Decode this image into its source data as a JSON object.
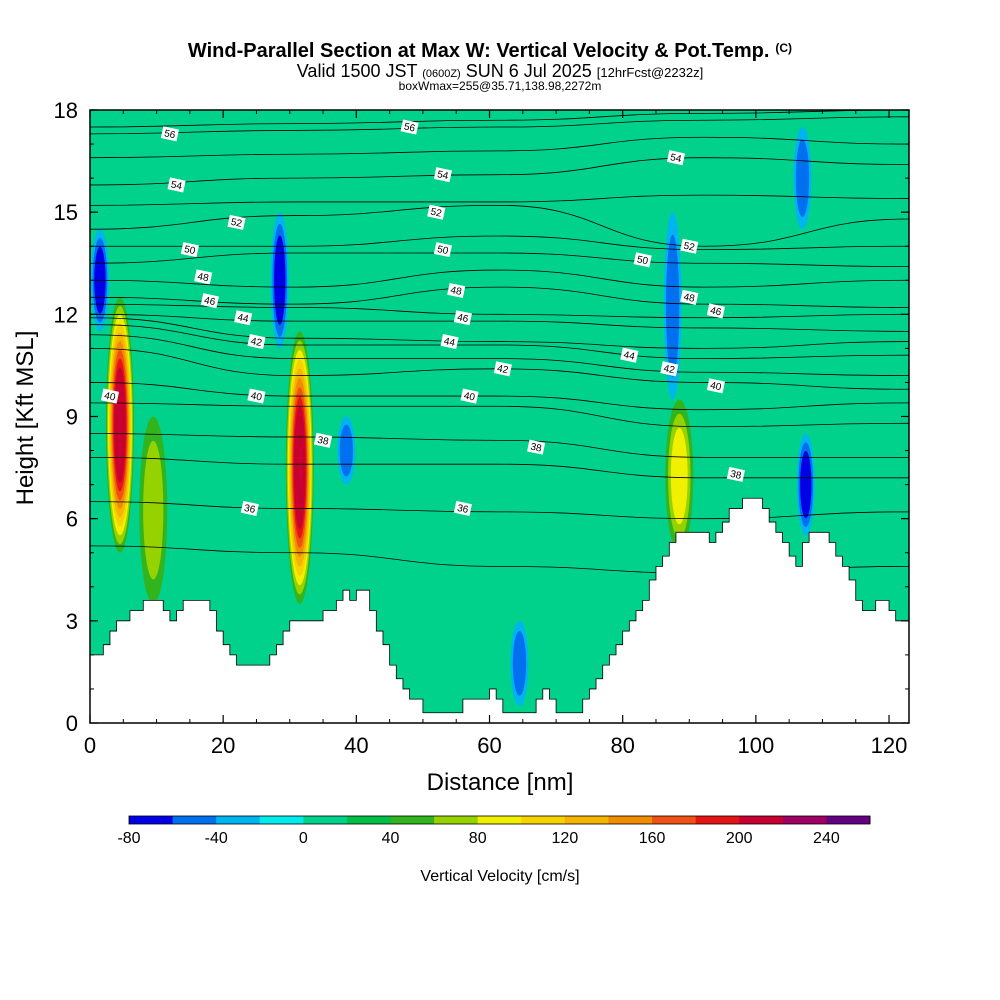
{
  "chart_data": {
    "type": "heatmap",
    "title": "Wind-Parallel Section at Max W: Vertical Velocity & Pot.Temp.",
    "title_mark": "(C)",
    "subtitle_parts": [
      "Valid 1500 JST ",
      "(0600Z)",
      " SUN 6 Jul 2025 ",
      "[12hrFcst@2232z]"
    ],
    "subtitle2": "boxWmax=255@35.71,138.98,2272m",
    "xlabel": "Distance [nm]",
    "ylabel": "Height [Kft MSL]",
    "xlim": [
      0,
      123
    ],
    "ylim": [
      0,
      18
    ],
    "x_ticks": [
      0,
      20,
      40,
      60,
      80,
      100,
      120
    ],
    "y_ticks": [
      0,
      3,
      6,
      9,
      12,
      15,
      18
    ],
    "colorbar": {
      "label": "Vertical Velocity [cm/s]",
      "tick_values": [
        -80,
        -40,
        0,
        40,
        80,
        120,
        160,
        200,
        240
      ],
      "levels": [
        -80,
        -60,
        -40,
        -20,
        0,
        20,
        40,
        60,
        80,
        100,
        120,
        140,
        160,
        180,
        200,
        220,
        240,
        260
      ],
      "colors": [
        "#0000e6",
        "#0070f0",
        "#00b4f0",
        "#00ecec",
        "#00d28c",
        "#00be46",
        "#32b41e",
        "#96d200",
        "#f0f000",
        "#f5d200",
        "#f5b400",
        "#f08c00",
        "#f05014",
        "#e61414",
        "#c80032",
        "#a00064",
        "#640082"
      ]
    },
    "background_color": "#00d28c",
    "terrain_color": "#ffffff",
    "terrain": [
      [
        0,
        2.0
      ],
      [
        2,
        2.0
      ],
      [
        2,
        2.3
      ],
      [
        3,
        2.3
      ],
      [
        3,
        2.7
      ],
      [
        4,
        2.7
      ],
      [
        4,
        3.0
      ],
      [
        6,
        3.0
      ],
      [
        6,
        3.3
      ],
      [
        8,
        3.3
      ],
      [
        8,
        3.6
      ],
      [
        11,
        3.6
      ],
      [
        11,
        3.3
      ],
      [
        12,
        3.3
      ],
      [
        12,
        3.0
      ],
      [
        13,
        3.0
      ],
      [
        13,
        3.3
      ],
      [
        14,
        3.3
      ],
      [
        14,
        3.6
      ],
      [
        18,
        3.6
      ],
      [
        18,
        3.3
      ],
      [
        19,
        3.3
      ],
      [
        19,
        2.7
      ],
      [
        20,
        2.7
      ],
      [
        20,
        2.3
      ],
      [
        21,
        2.3
      ],
      [
        21,
        2.0
      ],
      [
        22,
        2.0
      ],
      [
        22,
        1.7
      ],
      [
        27,
        1.7
      ],
      [
        27,
        2.0
      ],
      [
        28,
        2.0
      ],
      [
        28,
        2.3
      ],
      [
        29,
        2.3
      ],
      [
        29,
        2.7
      ],
      [
        30,
        2.7
      ],
      [
        30,
        3.0
      ],
      [
        35,
        3.0
      ],
      [
        35,
        3.3
      ],
      [
        37,
        3.3
      ],
      [
        37,
        3.6
      ],
      [
        38,
        3.6
      ],
      [
        38,
        3.9
      ],
      [
        39,
        3.9
      ],
      [
        39,
        3.6
      ],
      [
        40,
        3.6
      ],
      [
        40,
        3.9
      ],
      [
        42,
        3.9
      ],
      [
        42,
        3.3
      ],
      [
        43,
        3.3
      ],
      [
        43,
        2.7
      ],
      [
        44,
        2.7
      ],
      [
        44,
        2.3
      ],
      [
        45,
        2.3
      ],
      [
        45,
        1.7
      ],
      [
        46,
        1.7
      ],
      [
        46,
        1.3
      ],
      [
        47,
        1.3
      ],
      [
        47,
        1.0
      ],
      [
        48,
        1.0
      ],
      [
        48,
        0.7
      ],
      [
        50,
        0.7
      ],
      [
        50,
        0.3
      ],
      [
        56,
        0.3
      ],
      [
        56,
        0.7
      ],
      [
        60,
        0.7
      ],
      [
        60,
        1.0
      ],
      [
        61,
        1.0
      ],
      [
        61,
        0.7
      ],
      [
        62,
        0.7
      ],
      [
        62,
        0.3
      ],
      [
        67,
        0.3
      ],
      [
        67,
        0.7
      ],
      [
        68,
        0.7
      ],
      [
        68,
        1.0
      ],
      [
        69,
        1.0
      ],
      [
        69,
        0.7
      ],
      [
        70,
        0.7
      ],
      [
        70,
        0.3
      ],
      [
        74,
        0.3
      ],
      [
        74,
        0.7
      ],
      [
        75,
        0.7
      ],
      [
        75,
        1.0
      ],
      [
        76,
        1.0
      ],
      [
        76,
        1.3
      ],
      [
        77,
        1.3
      ],
      [
        77,
        1.7
      ],
      [
        78,
        1.7
      ],
      [
        78,
        2.0
      ],
      [
        79,
        2.0
      ],
      [
        79,
        2.3
      ],
      [
        80,
        2.3
      ],
      [
        80,
        2.7
      ],
      [
        81,
        2.7
      ],
      [
        81,
        3.0
      ],
      [
        82,
        3.0
      ],
      [
        82,
        3.3
      ],
      [
        83,
        3.3
      ],
      [
        83,
        3.6
      ],
      [
        84,
        3.6
      ],
      [
        84,
        4.2
      ],
      [
        85,
        4.2
      ],
      [
        85,
        4.6
      ],
      [
        86,
        4.6
      ],
      [
        86,
        4.9
      ],
      [
        87,
        4.9
      ],
      [
        87,
        5.3
      ],
      [
        88,
        5.3
      ],
      [
        88,
        5.6
      ],
      [
        93,
        5.6
      ],
      [
        93,
        5.3
      ],
      [
        94,
        5.3
      ],
      [
        94,
        5.6
      ],
      [
        95,
        5.6
      ],
      [
        95,
        5.9
      ],
      [
        96,
        5.9
      ],
      [
        96,
        6.3
      ],
      [
        98,
        6.3
      ],
      [
        98,
        6.6
      ],
      [
        101,
        6.6
      ],
      [
        101,
        6.3
      ],
      [
        102,
        6.3
      ],
      [
        102,
        5.9
      ],
      [
        103,
        5.9
      ],
      [
        103,
        5.6
      ],
      [
        104,
        5.6
      ],
      [
        104,
        5.3
      ],
      [
        105,
        5.3
      ],
      [
        105,
        4.9
      ],
      [
        106,
        4.9
      ],
      [
        106,
        4.6
      ],
      [
        107,
        4.6
      ],
      [
        107,
        5.3
      ],
      [
        108,
        5.3
      ],
      [
        108,
        5.6
      ],
      [
        111,
        5.6
      ],
      [
        111,
        5.3
      ],
      [
        112,
        5.3
      ],
      [
        112,
        4.9
      ],
      [
        113,
        4.9
      ],
      [
        113,
        4.6
      ],
      [
        114,
        4.6
      ],
      [
        114,
        4.2
      ],
      [
        115,
        4.2
      ],
      [
        115,
        3.6
      ],
      [
        116,
        3.6
      ],
      [
        116,
        3.3
      ],
      [
        118,
        3.3
      ],
      [
        118,
        3.6
      ],
      [
        120,
        3.6
      ],
      [
        120,
        3.3
      ],
      [
        121,
        3.3
      ],
      [
        121,
        3.0
      ],
      [
        123,
        3.0
      ]
    ],
    "updrafts": [
      {
        "x": 4.5,
        "y0": 5.0,
        "y1": 12.5,
        "peak": 200
      },
      {
        "x": 31.5,
        "y0": 3.5,
        "y1": 11.5,
        "peak": 215
      },
      {
        "x": 88.5,
        "y0": 5.0,
        "y1": 9.5,
        "peak": 90
      },
      {
        "x": 9.5,
        "y0": 3.5,
        "y1": 9.0,
        "peak": 60
      }
    ],
    "downdrafts": [
      {
        "x": 1.5,
        "y0": 11.5,
        "y1": 14.5,
        "peak": -60
      },
      {
        "x": 28.5,
        "y0": 11.0,
        "y1": 15.0,
        "peak": -60
      },
      {
        "x": 38.5,
        "y0": 7.0,
        "y1": 9.0,
        "peak": -50
      },
      {
        "x": 87.5,
        "y0": 9.5,
        "y1": 15.0,
        "peak": -55
      },
      {
        "x": 107.5,
        "y0": 5.5,
        "y1": 8.5,
        "peak": -60
      },
      {
        "x": 107.0,
        "y0": 14.5,
        "y1": 17.5,
        "peak": -50
      },
      {
        "x": 64.5,
        "y0": 0.5,
        "y1": 3.0,
        "peak": -40
      }
    ],
    "theta_contours": [
      {
        "label": "56",
        "y": [
          17.5,
          17.6,
          17.7,
          17.9,
          18.0
        ]
      },
      {
        "label": "56",
        "y": [
          17.3,
          17.4,
          17.5,
          17.7,
          17.8
        ]
      },
      {
        "label": "54",
        "y": [
          16.6,
          16.7,
          16.8,
          17.2,
          17.0
        ]
      },
      {
        "label": "54",
        "y": [
          15.8,
          16.0,
          16.1,
          16.6,
          16.4
        ]
      },
      {
        "label": "52",
        "y": [
          15.2,
          15.3,
          15.3,
          15.5,
          15.4
        ]
      },
      {
        "label": "52",
        "y": [
          14.5,
          14.9,
          15.2,
          14.0,
          14.8
        ]
      },
      {
        "label": "50",
        "y": [
          14.0,
          14.0,
          14.3,
          13.9,
          14.0
        ]
      },
      {
        "label": "50",
        "y": [
          13.5,
          13.8,
          13.8,
          13.5,
          13.4
        ]
      },
      {
        "label": "48",
        "y": [
          13.0,
          12.8,
          13.3,
          12.8,
          13.0
        ]
      },
      {
        "label": "48",
        "y": [
          12.5,
          12.3,
          12.8,
          12.3,
          12.2
        ]
      },
      {
        "label": "46",
        "y": [
          12.3,
          12.2,
          12.0,
          11.9,
          12.0
        ]
      },
      {
        "label": "46",
        "y": [
          12.0,
          11.8,
          11.8,
          11.6,
          11.5
        ]
      },
      {
        "label": "44",
        "y": [
          11.9,
          11.3,
          11.2,
          11.0,
          11.2
        ]
      },
      {
        "label": "44",
        "y": [
          11.7,
          11.1,
          11.1,
          10.7,
          10.8
        ]
      },
      {
        "label": "42",
        "y": [
          11.4,
          10.7,
          10.7,
          10.3,
          10.2
        ]
      },
      {
        "label": "42",
        "y": [
          11.0,
          10.2,
          10.4,
          10.0,
          9.8
        ]
      },
      {
        "label": "40",
        "y": [
          10.0,
          9.6,
          9.6,
          9.2,
          9.4
        ]
      },
      {
        "label": "40",
        "y": [
          9.4,
          9.3,
          9.3,
          8.7,
          8.8
        ]
      },
      {
        "label": "38",
        "y": [
          8.5,
          8.4,
          8.3,
          7.8,
          7.8
        ]
      },
      {
        "label": "38",
        "y": [
          7.8,
          7.6,
          7.6,
          7.2,
          7.2
        ]
      },
      {
        "label": "36",
        "y": [
          6.5,
          6.3,
          6.2,
          6.0,
          6.2
        ]
      },
      {
        "label": "36",
        "y": [
          5.2,
          5.0,
          4.6,
          4.4,
          4.6
        ]
      }
    ],
    "contour_labels": [
      {
        "text": "56",
        "x": 12,
        "y": 17.3
      },
      {
        "text": "56",
        "x": 48,
        "y": 17.5
      },
      {
        "text": "54",
        "x": 13,
        "y": 15.8
      },
      {
        "text": "54",
        "x": 53,
        "y": 16.1
      },
      {
        "text": "54",
        "x": 88,
        "y": 16.6
      },
      {
        "text": "52",
        "x": 22,
        "y": 14.7
      },
      {
        "text": "52",
        "x": 52,
        "y": 15.0
      },
      {
        "text": "52",
        "x": 90,
        "y": 14.0
      },
      {
        "text": "50",
        "x": 15,
        "y": 13.9
      },
      {
        "text": "50",
        "x": 53,
        "y": 13.9
      },
      {
        "text": "50",
        "x": 83,
        "y": 13.6
      },
      {
        "text": "48",
        "x": 17,
        "y": 13.1
      },
      {
        "text": "48",
        "x": 55,
        "y": 12.7
      },
      {
        "text": "48",
        "x": 90,
        "y": 12.5
      },
      {
        "text": "46",
        "x": 18,
        "y": 12.4
      },
      {
        "text": "46",
        "x": 56,
        "y": 11.9
      },
      {
        "text": "46",
        "x": 94,
        "y": 12.1
      },
      {
        "text": "44",
        "x": 23,
        "y": 11.9
      },
      {
        "text": "44",
        "x": 54,
        "y": 11.2
      },
      {
        "text": "44",
        "x": 81,
        "y": 10.8
      },
      {
        "text": "42",
        "x": 25,
        "y": 11.2
      },
      {
        "text": "42",
        "x": 62,
        "y": 10.4
      },
      {
        "text": "42",
        "x": 87,
        "y": 10.4
      },
      {
        "text": "40",
        "x": 3,
        "y": 9.6
      },
      {
        "text": "40",
        "x": 25,
        "y": 9.6
      },
      {
        "text": "40",
        "x": 57,
        "y": 9.6
      },
      {
        "text": "40",
        "x": 94,
        "y": 9.9
      },
      {
        "text": "38",
        "x": 35,
        "y": 8.3
      },
      {
        "text": "38",
        "x": 67,
        "y": 8.1
      },
      {
        "text": "38",
        "x": 97,
        "y": 7.3
      },
      {
        "text": "36",
        "x": 24,
        "y": 6.3
      },
      {
        "text": "36",
        "x": 56,
        "y": 6.3
      }
    ]
  }
}
